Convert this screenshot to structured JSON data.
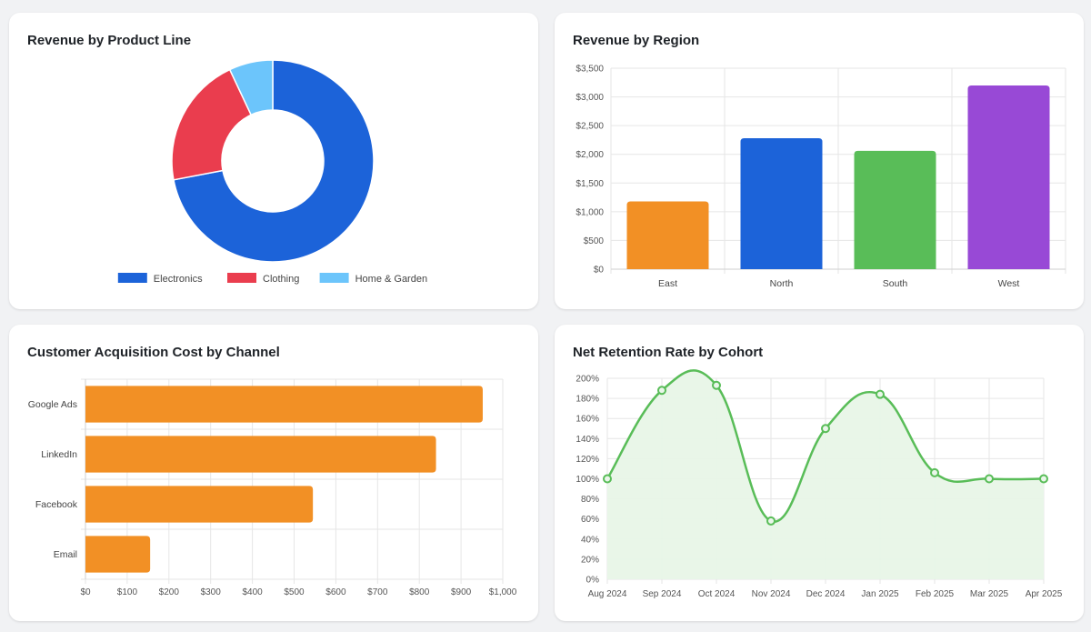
{
  "chart_data": [
    {
      "type": "pie",
      "variant": "doughnut",
      "title": "Revenue by Product Line",
      "categories": [
        "Electronics",
        "Clothing",
        "Home & Garden"
      ],
      "values": [
        72,
        21,
        7
      ],
      "colors": [
        "#1c63d9",
        "#ea3d4e",
        "#6cc5fb"
      ],
      "legend": "bottom"
    },
    {
      "type": "bar",
      "title": "Revenue by Region",
      "categories": [
        "East",
        "North",
        "South",
        "West"
      ],
      "values": [
        1180,
        2280,
        2060,
        3200
      ],
      "colors": [
        "#f29025",
        "#1c63d9",
        "#59bd58",
        "#9849d6"
      ],
      "ylim": [
        0,
        3500
      ],
      "yticks": [
        0,
        500,
        1000,
        1500,
        2000,
        2500,
        3000,
        3500
      ],
      "ytick_labels": [
        "$0",
        "$500",
        "$1,000",
        "$1,500",
        "$2,000",
        "$2,500",
        "$3,000",
        "$3,500"
      ],
      "grid": true
    },
    {
      "type": "bar",
      "orientation": "horizontal",
      "title": "Customer Acquisition Cost by Channel",
      "categories": [
        "Google Ads",
        "LinkedIn",
        "Facebook",
        "Email"
      ],
      "values": [
        952,
        840,
        545,
        155
      ],
      "color": "#f29025",
      "xlim": [
        0,
        1000
      ],
      "xticks": [
        0,
        100,
        200,
        300,
        400,
        500,
        600,
        700,
        800,
        900,
        1000
      ],
      "xtick_labels": [
        "$0",
        "$100",
        "$200",
        "$300",
        "$400",
        "$500",
        "$600",
        "$700",
        "$800",
        "$900",
        "$1,000"
      ],
      "grid": true
    },
    {
      "type": "area",
      "title": "Net Retention Rate by Cohort",
      "categories": [
        "Aug 2024",
        "Sep 2024",
        "Oct 2024",
        "Nov 2024",
        "Dec 2024",
        "Jan 2025",
        "Feb 2025",
        "Mar 2025",
        "Apr 2025"
      ],
      "values": [
        100,
        188,
        193,
        58,
        150,
        184,
        106,
        100,
        100
      ],
      "color": "#59bd58",
      "fill": "#e8f5e7",
      "ylim": [
        0,
        200
      ],
      "yticks": [
        0,
        20,
        40,
        60,
        80,
        100,
        120,
        140,
        160,
        180,
        200
      ],
      "ytick_labels": [
        "0%",
        "20%",
        "40%",
        "60%",
        "80%",
        "100%",
        "120%",
        "140%",
        "160%",
        "180%",
        "200%"
      ],
      "grid": true
    }
  ]
}
